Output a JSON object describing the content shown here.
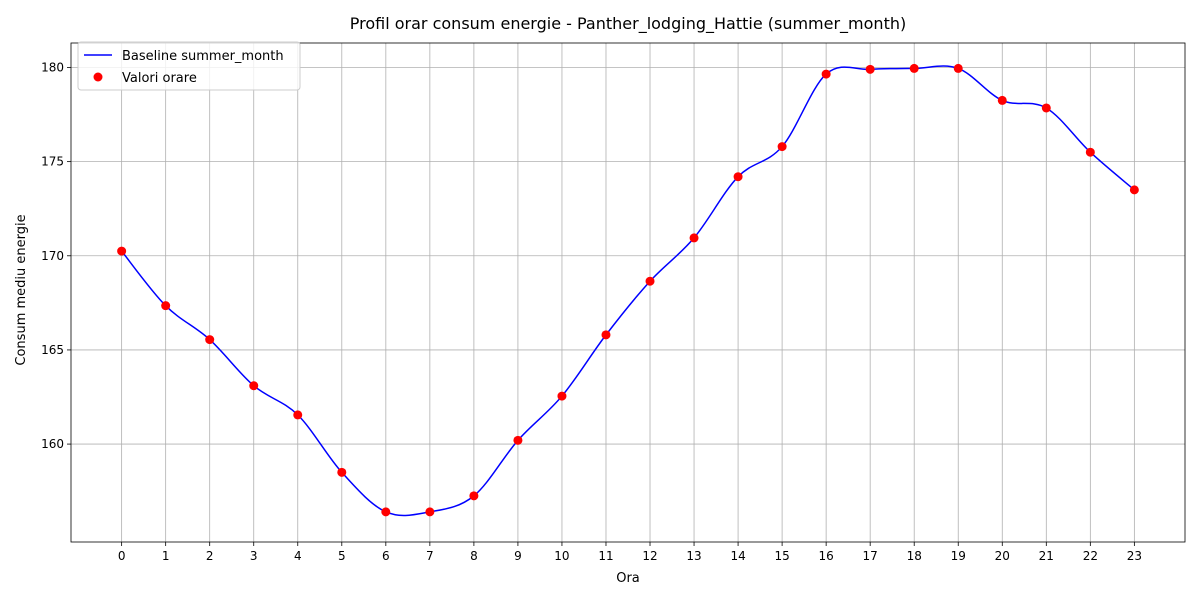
{
  "chart_data": {
    "type": "line",
    "title": "Profil orar consum energie - Panther_lodging_Hattie (summer_month)",
    "xlabel": "Ora",
    "ylabel": "Consum mediu energie",
    "x": [
      0,
      1,
      2,
      3,
      4,
      5,
      6,
      7,
      8,
      9,
      10,
      11,
      12,
      13,
      14,
      15,
      16,
      17,
      18,
      19,
      20,
      21,
      22,
      23
    ],
    "xticks": [
      "0",
      "1",
      "2",
      "3",
      "4",
      "5",
      "6",
      "7",
      "8",
      "9",
      "10",
      "11",
      "12",
      "13",
      "14",
      "15",
      "16",
      "17",
      "18",
      "19",
      "20",
      "21",
      "22",
      "23"
    ],
    "yticks": [
      160,
      165,
      170,
      175,
      180
    ],
    "xlim": [
      -1.15,
      24.15
    ],
    "ylim": [
      154.8,
      181.3
    ],
    "grid": true,
    "legend_position": "upper-left",
    "series": [
      {
        "name": "Baseline summer_month",
        "kind": "line",
        "color": "#0000ff",
        "values": [
          170.25,
          167.35,
          165.55,
          163.1,
          161.55,
          158.5,
          156.4,
          156.4,
          157.25,
          160.2,
          162.55,
          165.8,
          168.65,
          170.95,
          174.2,
          175.8,
          179.65,
          179.9,
          179.95,
          179.95,
          178.25,
          177.85,
          175.5,
          173.5
        ]
      },
      {
        "name": "Valori orare",
        "kind": "scatter",
        "color": "#ff0000",
        "values": [
          170.25,
          167.35,
          165.55,
          163.1,
          161.55,
          158.5,
          156.4,
          156.4,
          157.25,
          160.2,
          162.55,
          165.8,
          168.65,
          170.95,
          174.2,
          175.8,
          179.65,
          179.9,
          179.95,
          179.95,
          178.25,
          177.85,
          175.5,
          173.5
        ]
      }
    ]
  }
}
